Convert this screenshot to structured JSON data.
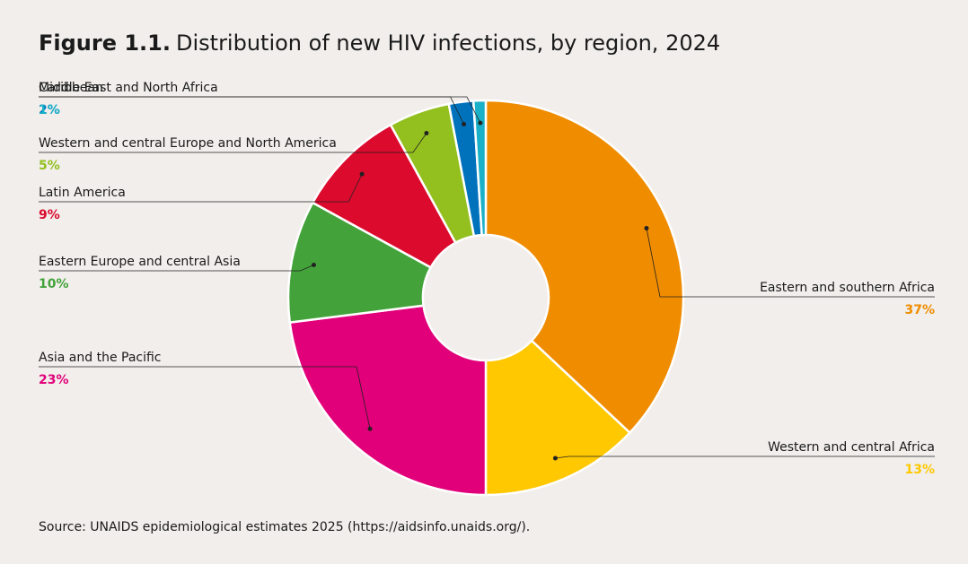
{
  "chart_data": {
    "type": "donut",
    "title_prefix": "Figure 1.1.",
    "title": "Distribution of new HIV infections, by region, 2024",
    "categories": [
      "Eastern and southern Africa",
      "Western and central Africa",
      "Asia and the Pacific",
      "Eastern Europe and central Asia",
      "Latin America",
      "Western and central Europe and North America",
      "Middle East and North Africa",
      "Caribbean"
    ],
    "values": [
      37,
      13,
      23,
      10,
      9,
      5,
      2,
      1
    ],
    "value_labels": [
      "37%",
      "13%",
      "23%",
      "10%",
      "9%",
      "5%",
      "2%",
      "1%"
    ],
    "colors": [
      "#f08c00",
      "#ffc800",
      "#e2007a",
      "#43a33a",
      "#dc0a2d",
      "#93c01f",
      "#0072bc",
      "#1ab0c8"
    ],
    "source": "Source: UNAIDS epidemiological estimates 2025 (https://aidsinfo.unaids.org/)."
  }
}
